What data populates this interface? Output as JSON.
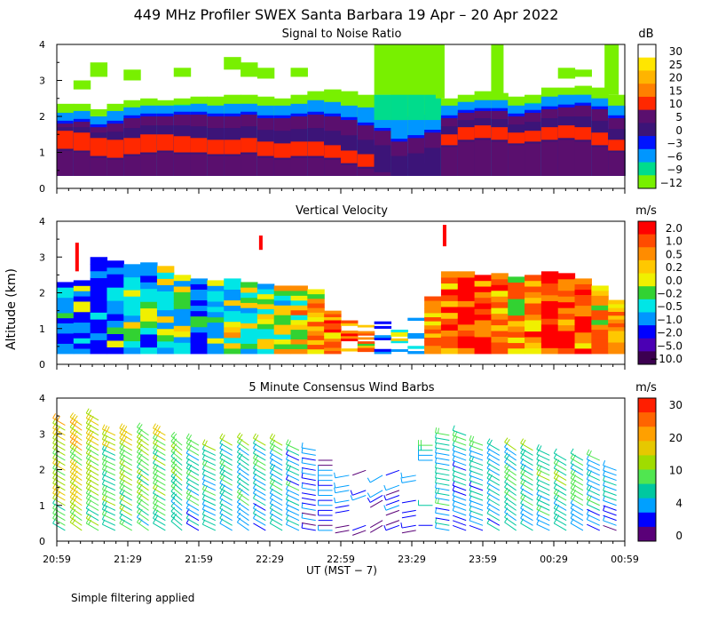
{
  "figure": {
    "title": "449 MHz Profiler SWEX Santa Barbara 19 Apr – 20 Apr 2022",
    "y_axis_label": "Altitude (km)",
    "x_axis_label": "UT  (MST − 7)",
    "footnote": "Simple filtering applied",
    "x_ticks": [
      "20:59",
      "21:29",
      "21:59",
      "22:29",
      "22:59",
      "23:29",
      "23:59",
      "00:29",
      "00:59"
    ]
  },
  "chart_data": [
    {
      "type": "heatmap",
      "title": "Signal to Noise Ratio",
      "ylim": [
        0,
        4
      ],
      "y_ticks": [
        "0",
        "1",
        "2",
        "3",
        "4"
      ],
      "colorbar": {
        "unit": "dB",
        "labels": [
          "30",
          "25",
          "20",
          "15",
          "10",
          "5",
          "0",
          "−3",
          "−6",
          "−9",
          "−12"
        ],
        "colors": [
          "#ffffff",
          "#ffe600",
          "#ffb400",
          "#ff8000",
          "#ff2800",
          "#5a0f6e",
          "#3c1478",
          "#0014ff",
          "#0096ff",
          "#00dc8c",
          "#78f000"
        ]
      },
      "bands": [
        {
          "name": "top",
          "values": [
            2.35,
            2.35,
            2.2,
            2.35,
            2.45,
            2.5,
            2.45,
            2.5,
            2.55,
            2.55,
            2.6,
            2.6,
            2.55,
            2.5,
            2.6,
            2.7,
            2.75,
            2.7,
            2.6,
            2.6,
            2.3,
            2.3,
            2.3,
            2.5,
            2.6,
            2.7,
            2.65,
            2.55,
            2.6,
            2.8,
            2.8,
            2.85,
            2.8,
            2.6
          ]
        },
        {
          "name": "snr_-3",
          "values": [
            2.1,
            2.15,
            2.0,
            2.15,
            2.25,
            2.3,
            2.3,
            2.3,
            2.35,
            2.3,
            2.35,
            2.35,
            2.3,
            2.3,
            2.35,
            2.45,
            2.4,
            2.3,
            2.25,
            2.2,
            1.9,
            2.0,
            2.05,
            2.3,
            2.4,
            2.45,
            2.45,
            2.3,
            2.35,
            2.55,
            2.6,
            2.6,
            2.5,
            2.3
          ]
        },
        {
          "name": "snr_5",
          "values": [
            1.8,
            1.85,
            1.7,
            1.8,
            1.95,
            2.0,
            2.0,
            2.05,
            2.05,
            2.0,
            2.0,
            2.05,
            1.95,
            1.95,
            2.0,
            2.05,
            2.0,
            1.9,
            1.75,
            1.6,
            1.3,
            1.4,
            1.55,
            1.95,
            2.1,
            2.15,
            2.15,
            2.0,
            2.1,
            2.2,
            2.25,
            2.3,
            2.2,
            1.95
          ]
        },
        {
          "name": "snr_10",
          "values": [
            1.6,
            1.55,
            1.4,
            1.35,
            1.4,
            1.5,
            1.5,
            1.45,
            1.4,
            1.35,
            1.35,
            1.4,
            1.3,
            1.25,
            1.3,
            1.3,
            1.2,
            1.05,
            0.95,
            0.8,
            0.5,
            0.55,
            0.7,
            1.5,
            1.7,
            1.75,
            1.7,
            1.55,
            1.6,
            1.7,
            1.75,
            1.7,
            1.55,
            1.35
          ]
        },
        {
          "name": "snr_10_bottom",
          "values": [
            1.1,
            1.05,
            0.9,
            0.85,
            0.95,
            1.0,
            1.05,
            1.0,
            1.0,
            0.95,
            0.95,
            1.0,
            0.9,
            0.85,
            0.9,
            0.9,
            0.85,
            0.7,
            0.6,
            0.5,
            0.4,
            0.4,
            0.4,
            1.2,
            1.35,
            1.4,
            1.35,
            1.25,
            1.3,
            1.35,
            1.4,
            1.35,
            1.2,
            1.05
          ]
        }
      ],
      "gap_segments": [
        {
          "t_start": "22:59",
          "t_end": "23:30",
          "note": "sparse / green noise columns"
        }
      ]
    },
    {
      "type": "heatmap",
      "title": "Vertical Velocity",
      "ylim": [
        0,
        4
      ],
      "y_ticks": [
        "0",
        "1",
        "2",
        "3",
        "4"
      ],
      "colorbar": {
        "unit": "m/s",
        "labels": [
          "2.0",
          "1.0",
          "0.5",
          "0.2",
          "0.0",
          "−0.2",
          "−0.5",
          "−1.0",
          "−2.0",
          "−5.0",
          "−10.0"
        ],
        "colors": [
          "#ff0000",
          "#ff4b00",
          "#ff8c00",
          "#ffc800",
          "#f0f000",
          "#32d232",
          "#00e6e6",
          "#0096ff",
          "#0000ff",
          "#4b00b4",
          "#3c0050"
        ]
      },
      "coverage_top_km": [
        2.3,
        2.35,
        3.0,
        2.9,
        2.8,
        2.85,
        2.75,
        2.5,
        2.4,
        2.35,
        2.4,
        2.3,
        2.25,
        2.2,
        2.2,
        2.1,
        1.5,
        1.3,
        1.1,
        1.2,
        1.15,
        1.3,
        1.9,
        2.6,
        2.6,
        2.5,
        2.55,
        2.45,
        2.5,
        2.6,
        2.55,
        2.4,
        2.2,
        1.8
      ],
      "dominant_value": [
        -1.0,
        -1.0,
        -2.0,
        -1.0,
        -0.5,
        -1.0,
        -0.5,
        -0.5,
        -1.0,
        -0.5,
        -0.2,
        -0.5,
        -0.5,
        -0.2,
        0.2,
        0.5,
        1.0,
        1.0,
        0.5,
        -2.0,
        -0.5,
        -1.0,
        0.5,
        1.0,
        2.0,
        1.0,
        1.0,
        0.5,
        1.0,
        2.0,
        1.0,
        1.0,
        0.5,
        1.0
      ]
    },
    {
      "type": "scatter",
      "title": "5 Minute Consensus Wind Barbs",
      "ylim": [
        0,
        4
      ],
      "y_ticks": [
        "0",
        "1",
        "2",
        "3",
        "4"
      ],
      "colorbar": {
        "unit": "m/s",
        "labels": [
          "30",
          "20",
          "10",
          "4",
          "0"
        ],
        "colors": [
          "#ff1e00",
          "#ff6400",
          "#ffa000",
          "#e6c800",
          "#a0dc00",
          "#50e650",
          "#00c8a0",
          "#00a0ff",
          "#0000ff",
          "#5a0078"
        ]
      },
      "mean_speed_ms": [
        18,
        19,
        17,
        15,
        16,
        15,
        14,
        13,
        12,
        12,
        11,
        11,
        10,
        10,
        9,
        6,
        5,
        4,
        3,
        3,
        4,
        6,
        8,
        9,
        8,
        9,
        10,
        11,
        12,
        13,
        14,
        12,
        10,
        8
      ],
      "mean_direction_deg": [
        300,
        305,
        300,
        295,
        300,
        305,
        300,
        310,
        300,
        295,
        300,
        305,
        300,
        300,
        295,
        280,
        270,
        260,
        250,
        240,
        250,
        260,
        270,
        280,
        290,
        290,
        300,
        305,
        300,
        295,
        300,
        300,
        295,
        290
      ]
    }
  ]
}
